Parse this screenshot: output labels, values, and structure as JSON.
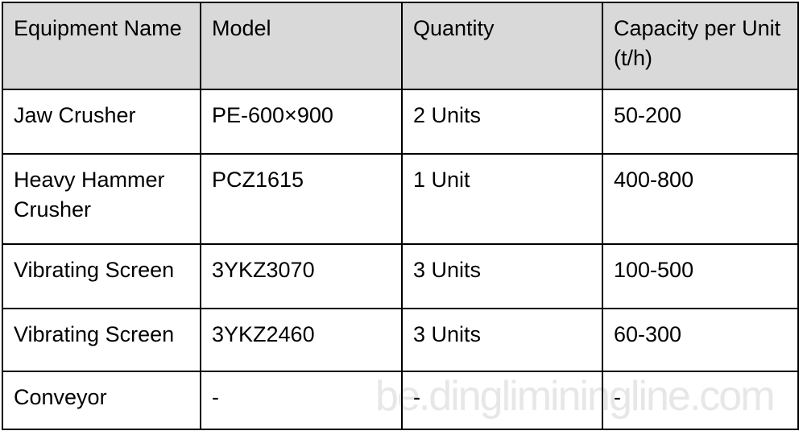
{
  "page": {
    "background_color": "#ffffff",
    "border_color": "#000000",
    "text_color": "#000000",
    "header_bg_color": "#d9d9d9"
  },
  "table": {
    "columns": [
      "Equipment Name",
      "Model",
      "Quantity",
      "Capacity per Unit (t/h)"
    ],
    "rows": [
      {
        "equipment": "Jaw Crusher",
        "model": "PE-600×900",
        "quantity": "2 Units",
        "capacity": "50-200"
      },
      {
        "equipment": "Heavy Hammer Crusher",
        "model": "PCZ1615",
        "quantity": "1 Unit",
        "capacity": "400-800"
      },
      {
        "equipment": "Vibrating Screen",
        "model": "3YKZ3070",
        "quantity": "3 Units",
        "capacity": "100-500"
      },
      {
        "equipment": "Vibrating Screen",
        "model": "3YKZ2460",
        "quantity": "3 Units",
        "capacity": "60-300"
      },
      {
        "equipment": "Conveyor",
        "model": "-",
        "quantity": "-",
        "capacity": "-"
      }
    ]
  },
  "watermark": {
    "text": "be.dingliminingline.com",
    "color": "#e7e7e7"
  }
}
